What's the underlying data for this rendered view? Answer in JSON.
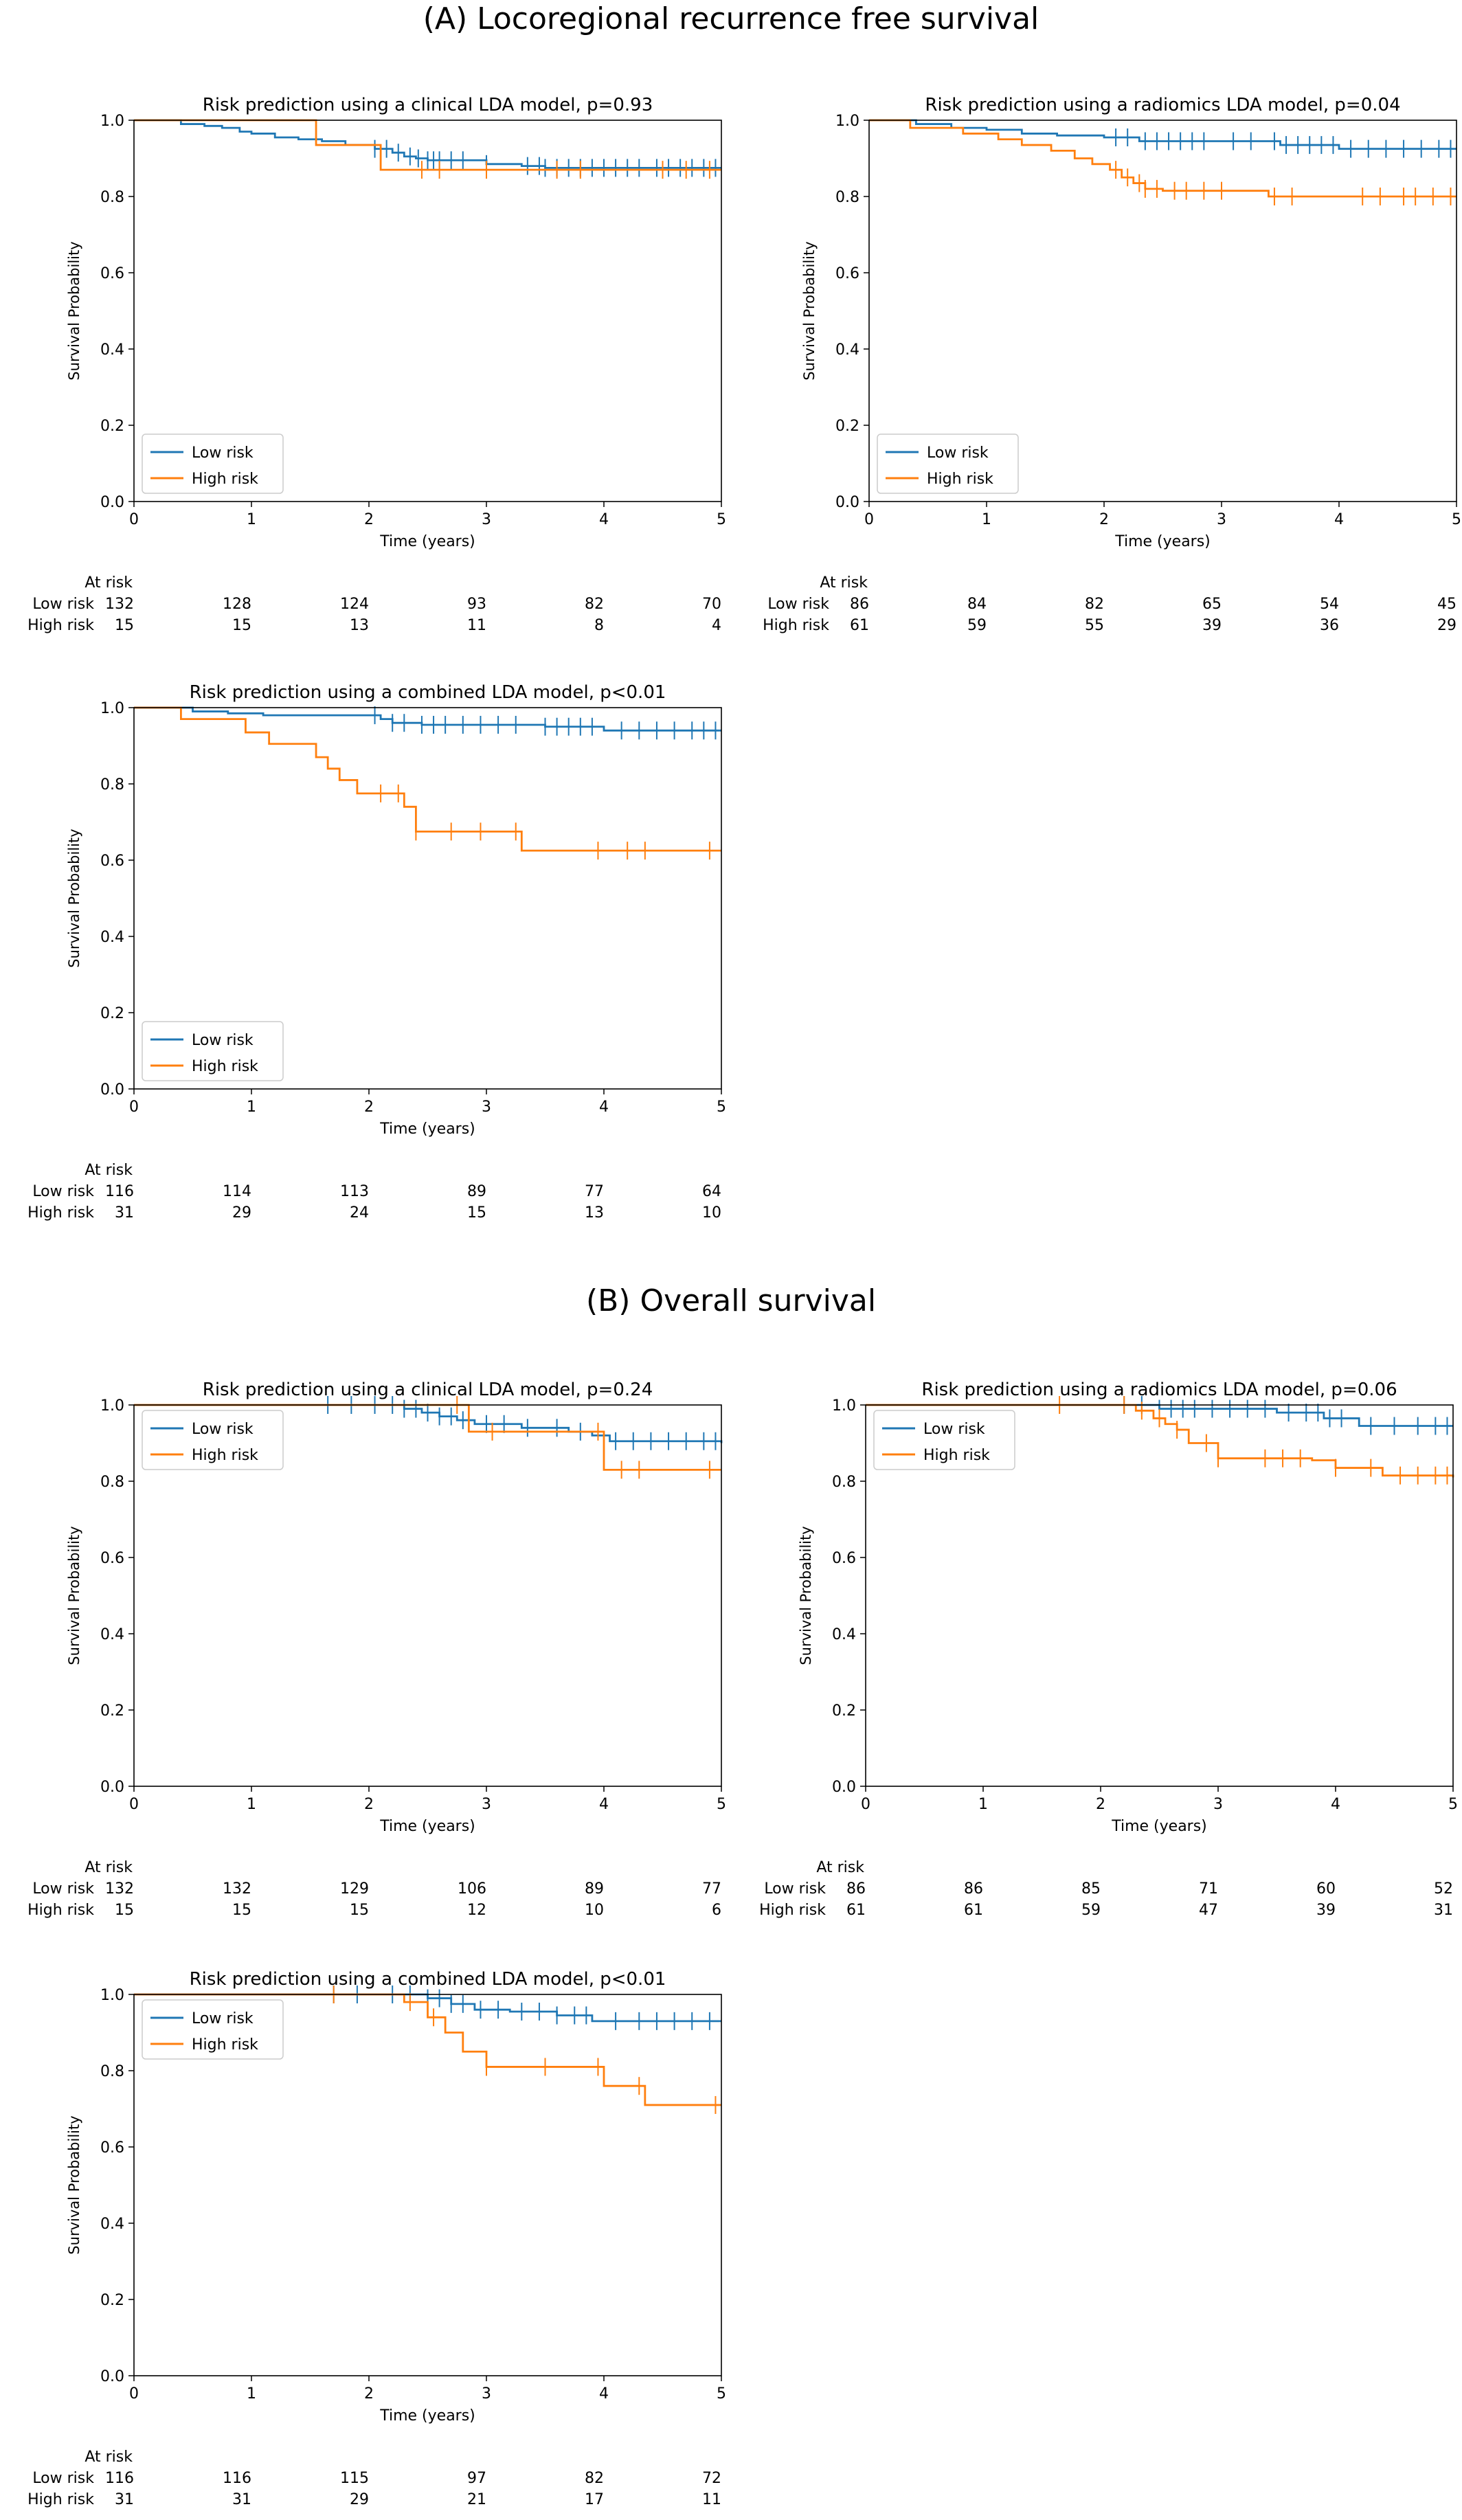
{
  "sections": [
    {
      "title": "(A) Locoregional recurrence free survival"
    },
    {
      "title": "(B) Overall survival"
    }
  ],
  "colors": {
    "low": "#1f77b4",
    "high": "#ff7f0e"
  },
  "chart_data": [
    {
      "type": "line",
      "title": "Risk prediction using a clinical LDA model, p=0.93",
      "xlabel": "Time (years)",
      "ylabel": "Survival Probability",
      "xlim": [
        0,
        5
      ],
      "ylim": [
        0,
        1
      ],
      "xticks": [
        0,
        1,
        2,
        3,
        4,
        5
      ],
      "yticks": [
        "0.0",
        "0.2",
        "0.4",
        "0.6",
        "0.8",
        "1.0"
      ],
      "legend_position": "lower-left",
      "series": [
        {
          "name": "Low risk",
          "color": "#1f77b4",
          "x": [
            0,
            0.4,
            0.6,
            0.75,
            0.9,
            1.0,
            1.2,
            1.4,
            1.6,
            1.8,
            2.05,
            2.2,
            2.3,
            2.4,
            2.5,
            3.0,
            3.3,
            3.5,
            5.0
          ],
          "y": [
            1.0,
            0.99,
            0.985,
            0.98,
            0.97,
            0.965,
            0.955,
            0.95,
            0.945,
            0.935,
            0.925,
            0.915,
            0.905,
            0.9,
            0.895,
            0.885,
            0.88,
            0.875,
            0.875
          ],
          "censor_x": [
            2.05,
            2.15,
            2.25,
            2.35,
            2.42,
            2.5,
            2.55,
            2.6,
            2.7,
            2.8,
            3.0,
            3.35,
            3.45,
            3.5,
            3.6,
            3.7,
            3.8,
            3.9,
            4.0,
            4.1,
            4.2,
            4.3,
            4.45,
            4.55,
            4.65,
            4.75,
            4.85,
            4.95
          ]
        },
        {
          "name": "High risk",
          "color": "#ff7f0e",
          "x": [
            0,
            1.55,
            1.7,
            2.1,
            5.0
          ],
          "y": [
            1.0,
            0.935,
            0.935,
            0.87,
            0.87
          ],
          "censor_x": [
            2.45,
            2.6,
            3.0,
            3.6,
            3.8,
            4.5,
            4.7,
            4.9
          ]
        }
      ],
      "at_risk": {
        "label": "At risk",
        "rows": [
          {
            "name": "Low risk",
            "values": [
              132,
              128,
              124,
              93,
              82,
              70
            ]
          },
          {
            "name": "High risk",
            "values": [
              15,
              15,
              13,
              11,
              8,
              4
            ]
          }
        ]
      }
    },
    {
      "type": "line",
      "title": "Risk prediction using a radiomics LDA model, p=0.04",
      "xlabel": "Time (years)",
      "ylabel": "Survival Probability",
      "xlim": [
        0,
        5
      ],
      "ylim": [
        0,
        1
      ],
      "xticks": [
        0,
        1,
        2,
        3,
        4,
        5
      ],
      "yticks": [
        "0.0",
        "0.2",
        "0.4",
        "0.6",
        "0.8",
        "1.0"
      ],
      "legend_position": "lower-left",
      "series": [
        {
          "name": "Low risk",
          "color": "#1f77b4",
          "x": [
            0,
            0.4,
            0.7,
            1.0,
            1.3,
            1.6,
            2.0,
            2.3,
            3.5,
            4.0,
            5.0
          ],
          "y": [
            1.0,
            0.99,
            0.98,
            0.975,
            0.965,
            0.96,
            0.955,
            0.945,
            0.935,
            0.925,
            0.925
          ],
          "censor_x": [
            2.1,
            2.2,
            2.35,
            2.45,
            2.55,
            2.65,
            2.75,
            2.85,
            3.1,
            3.25,
            3.45,
            3.55,
            3.65,
            3.75,
            3.85,
            3.95,
            4.1,
            4.25,
            4.4,
            4.55,
            4.7,
            4.85,
            4.95
          ]
        },
        {
          "name": "High risk",
          "color": "#ff7f0e",
          "x": [
            0,
            0.35,
            0.8,
            1.1,
            1.3,
            1.55,
            1.75,
            1.9,
            2.05,
            2.15,
            2.25,
            2.35,
            2.5,
            3.4,
            5.0
          ],
          "y": [
            1.0,
            0.98,
            0.965,
            0.95,
            0.935,
            0.92,
            0.9,
            0.885,
            0.87,
            0.85,
            0.835,
            0.82,
            0.815,
            0.8,
            0.8
          ],
          "censor_x": [
            2.1,
            2.2,
            2.3,
            2.35,
            2.45,
            2.6,
            2.7,
            2.85,
            3.0,
            3.45,
            3.6,
            4.2,
            4.35,
            4.55,
            4.65,
            4.8,
            4.95
          ]
        }
      ],
      "at_risk": {
        "label": "At risk",
        "rows": [
          {
            "name": "Low risk",
            "values": [
              86,
              84,
              82,
              65,
              54,
              45
            ]
          },
          {
            "name": "High risk",
            "values": [
              61,
              59,
              55,
              39,
              36,
              29
            ]
          }
        ]
      }
    },
    {
      "type": "line",
      "title": "Risk prediction using a combined LDA model, p<0.01",
      "xlabel": "Time (years)",
      "ylabel": "Survival Probability",
      "xlim": [
        0,
        5
      ],
      "ylim": [
        0,
        1
      ],
      "xticks": [
        0,
        1,
        2,
        3,
        4,
        5
      ],
      "yticks": [
        "0.0",
        "0.2",
        "0.4",
        "0.6",
        "0.8",
        "1.0"
      ],
      "legend_position": "lower-left",
      "series": [
        {
          "name": "Low risk",
          "color": "#1f77b4",
          "x": [
            0,
            0.5,
            0.8,
            1.1,
            2.1,
            2.2,
            2.45,
            3.5,
            4.0,
            5.0
          ],
          "y": [
            1.0,
            0.99,
            0.985,
            0.98,
            0.97,
            0.96,
            0.955,
            0.95,
            0.94,
            0.94
          ],
          "censor_x": [
            2.05,
            2.2,
            2.3,
            2.45,
            2.55,
            2.65,
            2.8,
            2.95,
            3.1,
            3.25,
            3.5,
            3.6,
            3.7,
            3.8,
            3.9,
            4.15,
            4.3,
            4.45,
            4.6,
            4.75,
            4.85,
            4.95
          ]
        },
        {
          "name": "High risk",
          "color": "#ff7f0e",
          "x": [
            0,
            0.4,
            0.95,
            1.15,
            1.55,
            1.65,
            1.75,
            1.9,
            2.3,
            2.4,
            3.3,
            5.0
          ],
          "y": [
            1.0,
            0.97,
            0.935,
            0.905,
            0.87,
            0.84,
            0.81,
            0.775,
            0.74,
            0.675,
            0.625,
            0.625
          ],
          "censor_x": [
            2.1,
            2.25,
            2.4,
            2.7,
            2.95,
            3.25,
            3.95,
            4.2,
            4.35,
            4.9
          ]
        }
      ],
      "at_risk": {
        "label": "At risk",
        "rows": [
          {
            "name": "Low risk",
            "values": [
              116,
              114,
              113,
              89,
              77,
              64
            ]
          },
          {
            "name": "High risk",
            "values": [
              31,
              29,
              24,
              15,
              13,
              10
            ]
          }
        ]
      }
    },
    {
      "type": "line",
      "title": "Risk prediction using a clinical LDA model, p=0.24",
      "xlabel": "Time (years)",
      "ylabel": "Survival Probability",
      "xlim": [
        0,
        5
      ],
      "ylim": [
        0,
        1
      ],
      "xticks": [
        0,
        1,
        2,
        3,
        4,
        5
      ],
      "yticks": [
        "0.0",
        "0.2",
        "0.4",
        "0.6",
        "0.8",
        "1.0"
      ],
      "legend_position": "upper-left",
      "series": [
        {
          "name": "Low risk",
          "color": "#1f77b4",
          "x": [
            0,
            2.3,
            2.45,
            2.6,
            2.75,
            2.9,
            3.3,
            3.7,
            3.9,
            4.05,
            5.0
          ],
          "y": [
            1.0,
            0.99,
            0.98,
            0.97,
            0.96,
            0.95,
            0.94,
            0.93,
            0.92,
            0.905,
            0.9
          ],
          "censor_x": [
            1.65,
            1.85,
            2.05,
            2.2,
            2.3,
            2.4,
            2.5,
            2.6,
            2.7,
            2.8,
            3.0,
            3.15,
            3.35,
            3.6,
            3.8,
            4.1,
            4.25,
            4.4,
            4.55,
            4.7,
            4.85,
            4.95
          ]
        },
        {
          "name": "High risk",
          "color": "#ff7f0e",
          "x": [
            0,
            2.85,
            3.7,
            4.0,
            5.0
          ],
          "y": [
            1.0,
            0.93,
            0.93,
            0.83,
            0.83
          ],
          "censor_x": [
            2.75,
            3.05,
            3.95,
            4.15,
            4.3,
            4.9
          ]
        }
      ],
      "at_risk": {
        "label": "At risk",
        "rows": [
          {
            "name": "Low risk",
            "values": [
              132,
              132,
              129,
              106,
              89,
              77
            ]
          },
          {
            "name": "High risk",
            "values": [
              15,
              15,
              15,
              12,
              10,
              6
            ]
          }
        ]
      }
    },
    {
      "type": "line",
      "title": "Risk prediction using a radiomics LDA model, p=0.06",
      "xlabel": "Time (years)",
      "ylabel": "Survival Probability",
      "xlim": [
        0,
        5
      ],
      "ylim": [
        0,
        1
      ],
      "xticks": [
        0,
        1,
        2,
        3,
        4,
        5
      ],
      "yticks": [
        "0.0",
        "0.2",
        "0.4",
        "0.6",
        "0.8",
        "1.0"
      ],
      "legend_position": "upper-left",
      "series": [
        {
          "name": "Low risk",
          "color": "#1f77b4",
          "x": [
            0,
            2.5,
            3.5,
            3.9,
            4.2,
            5.0
          ],
          "y": [
            1.0,
            0.99,
            0.98,
            0.965,
            0.945,
            0.945
          ],
          "censor_x": [
            2.2,
            2.35,
            2.5,
            2.6,
            2.7,
            2.8,
            2.95,
            3.1,
            3.25,
            3.4,
            3.6,
            3.75,
            3.85,
            3.95,
            4.05,
            4.3,
            4.5,
            4.7,
            4.85,
            4.95
          ]
        },
        {
          "name": "High risk",
          "color": "#ff7f0e",
          "x": [
            0,
            2.3,
            2.45,
            2.55,
            2.65,
            2.75,
            3.0,
            3.8,
            4.0,
            4.4,
            5.0
          ],
          "y": [
            1.0,
            0.985,
            0.965,
            0.95,
            0.935,
            0.9,
            0.86,
            0.855,
            0.835,
            0.815,
            0.81
          ],
          "censor_x": [
            1.65,
            2.2,
            2.35,
            2.5,
            2.65,
            2.9,
            3.0,
            3.4,
            3.55,
            3.7,
            4.0,
            4.3,
            4.55,
            4.7,
            4.85,
            4.95
          ]
        }
      ],
      "at_risk": {
        "label": "At risk",
        "rows": [
          {
            "name": "Low risk",
            "values": [
              86,
              86,
              85,
              71,
              60,
              52
            ]
          },
          {
            "name": "High risk",
            "values": [
              61,
              61,
              59,
              47,
              39,
              31
            ]
          }
        ]
      }
    },
    {
      "type": "line",
      "title": "Risk prediction using a combined LDA model, p<0.01",
      "xlabel": "Time (years)",
      "ylabel": "Survival Probability",
      "xlim": [
        0,
        5
      ],
      "ylim": [
        0,
        1
      ],
      "xticks": [
        0,
        1,
        2,
        3,
        4,
        5
      ],
      "yticks": [
        "0.0",
        "0.2",
        "0.4",
        "0.6",
        "0.8",
        "1.0"
      ],
      "legend_position": "upper-left",
      "series": [
        {
          "name": "Low risk",
          "color": "#1f77b4",
          "x": [
            0,
            2.5,
            2.7,
            2.9,
            3.2,
            3.6,
            3.9,
            5.0
          ],
          "y": [
            1.0,
            0.99,
            0.975,
            0.96,
            0.955,
            0.945,
            0.93,
            0.93
          ],
          "censor_x": [
            1.7,
            1.9,
            2.2,
            2.35,
            2.5,
            2.6,
            2.7,
            2.8,
            2.95,
            3.1,
            3.3,
            3.45,
            3.6,
            3.75,
            3.85,
            4.1,
            4.3,
            4.45,
            4.6,
            4.75,
            4.9
          ]
        },
        {
          "name": "High risk",
          "color": "#ff7f0e",
          "x": [
            0,
            2.3,
            2.5,
            2.65,
            2.8,
            3.0,
            4.0,
            4.35,
            5.0
          ],
          "y": [
            1.0,
            0.98,
            0.94,
            0.9,
            0.85,
            0.81,
            0.76,
            0.71,
            0.71
          ],
          "censor_x": [
            1.7,
            2.35,
            2.55,
            3.0,
            3.5,
            3.95,
            4.3,
            4.95
          ]
        }
      ],
      "at_risk": {
        "label": "At risk",
        "rows": [
          {
            "name": "Low risk",
            "values": [
              116,
              116,
              115,
              97,
              82,
              72
            ]
          },
          {
            "name": "High risk",
            "values": [
              31,
              31,
              29,
              21,
              17,
              11
            ]
          }
        ]
      }
    }
  ]
}
